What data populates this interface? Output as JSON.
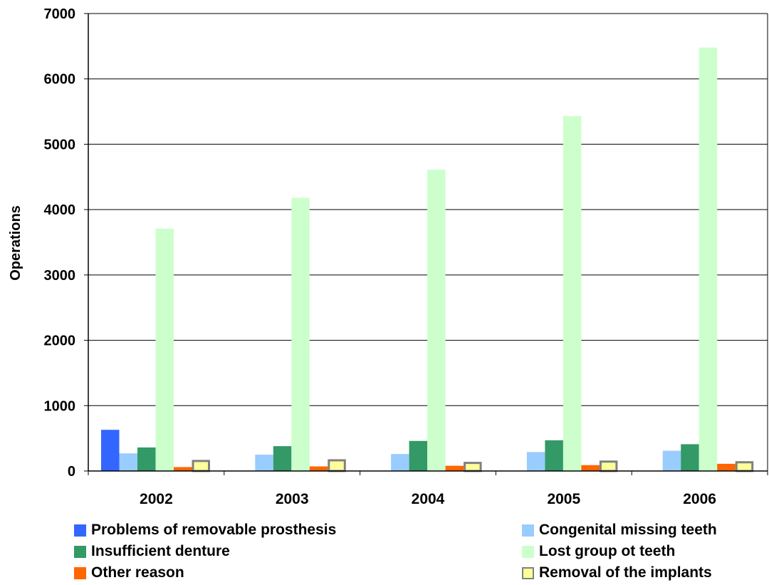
{
  "chart_data": {
    "type": "bar",
    "title": "",
    "xlabel": "",
    "ylabel": "Operations",
    "ylim": [
      0,
      7000
    ],
    "yticks": [
      0,
      1000,
      2000,
      3000,
      4000,
      5000,
      6000,
      7000
    ],
    "grid": true,
    "legend_position": "bottom",
    "categories": [
      "2002",
      "2003",
      "2004",
      "2005",
      "2006"
    ],
    "series": [
      {
        "name": "Problems of removable prosthesis",
        "color": "#3366ff",
        "values": [
          630,
          0,
          0,
          0,
          0
        ]
      },
      {
        "name": "Congenital missing teeth",
        "color": "#99ccff",
        "values": [
          270,
          250,
          260,
          290,
          310
        ]
      },
      {
        "name": "Insufficient denture",
        "color": "#339966",
        "values": [
          360,
          380,
          460,
          470,
          410
        ]
      },
      {
        "name": "Lost group ot teeth",
        "color": "#ccffcc",
        "values": [
          3710,
          4180,
          4610,
          5430,
          6480
        ]
      },
      {
        "name": "Other reason",
        "color": "#ff6600",
        "values": [
          60,
          70,
          80,
          90,
          110
        ]
      },
      {
        "name": "Removal of the implants",
        "color": "#ffff99",
        "stroke": "#808080",
        "values": [
          170,
          180,
          140,
          160,
          150
        ]
      }
    ]
  }
}
